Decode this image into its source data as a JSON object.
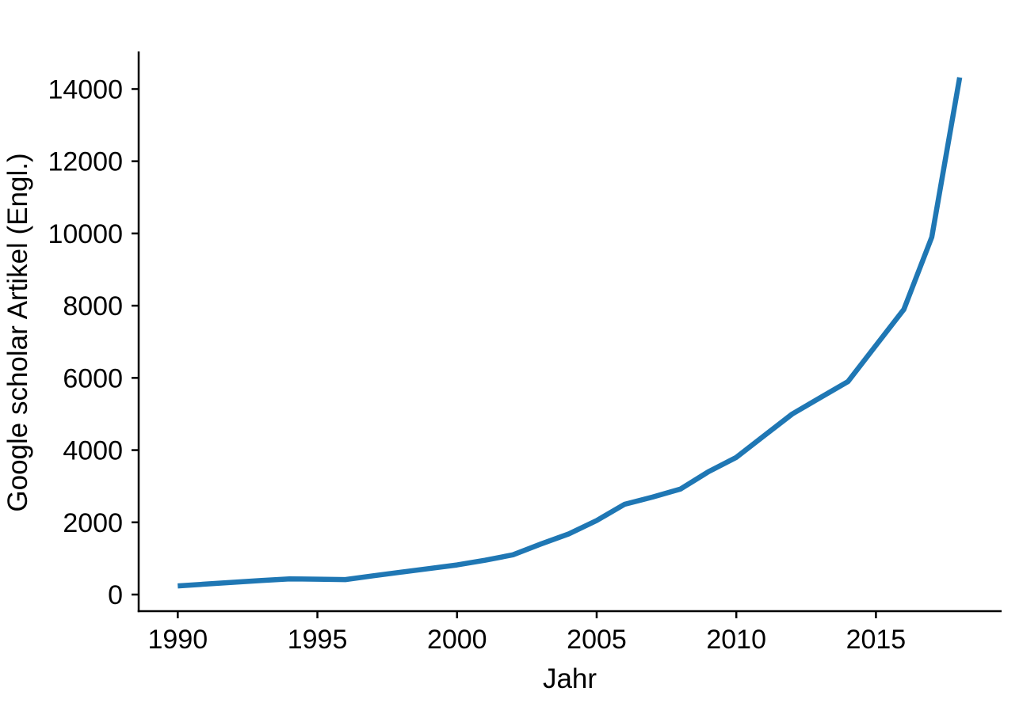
{
  "chart_data": {
    "type": "line",
    "title": "",
    "xlabel": "Jahr",
    "ylabel": "Google scholar Artikel (Engl.)",
    "x": [
      1990,
      1991,
      1992,
      1993,
      1994,
      1995,
      1996,
      1997,
      1998,
      1999,
      2000,
      2001,
      2002,
      2003,
      2004,
      2005,
      2006,
      2007,
      2008,
      2009,
      2010,
      2011,
      2012,
      2013,
      2014,
      2015,
      2016,
      2017,
      2018
    ],
    "series": [
      {
        "name": "Google scholar Artikel (Engl.)",
        "values": [
          240,
          290,
          340,
          390,
          435,
          425,
          415,
          520,
          620,
          720,
          820,
          950,
          1100,
          1400,
          1680,
          2050,
          2500,
          2700,
          2920,
          3400,
          3800,
          4400,
          5000,
          5450,
          5900,
          6900,
          7900,
          9900,
          14320
        ]
      }
    ],
    "xticks": [
      1990,
      1995,
      2000,
      2005,
      2010,
      2015
    ],
    "yticks": [
      0,
      2000,
      4000,
      6000,
      8000,
      10000,
      12000,
      14000
    ],
    "xlim": [
      1988.6,
      2019.5
    ],
    "ylim": [
      -460,
      15040
    ],
    "grid": false,
    "legend_position": "none",
    "line_color": "#1f77b4",
    "axis_color": "#000000"
  }
}
